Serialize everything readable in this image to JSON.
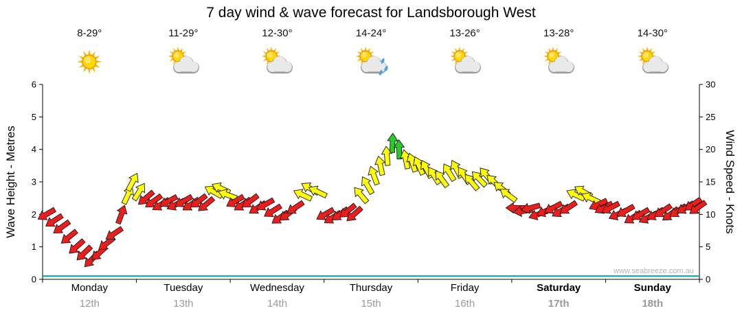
{
  "title": "7 day wind & wave forecast for Landsborough West",
  "watermark": "www.seabreeze.com.au",
  "days": [
    {
      "name": "Monday",
      "date": "12th",
      "temp": "8-29°",
      "icon": "sunny"
    },
    {
      "name": "Tuesday",
      "date": "13th",
      "temp": "11-29°",
      "icon": "partly-cloudy"
    },
    {
      "name": "Wednesday",
      "date": "14th",
      "temp": "12-30°",
      "icon": "partly-cloudy"
    },
    {
      "name": "Thursday",
      "date": "15th",
      "temp": "14-24°",
      "icon": "partly-cloudy-showers"
    },
    {
      "name": "Friday",
      "date": "16th",
      "temp": "13-26°",
      "icon": "partly-cloudy"
    },
    {
      "name": "Saturday",
      "date": "17th",
      "temp": "13-28°",
      "icon": "partly-cloudy"
    },
    {
      "name": "Sunday",
      "date": "18th",
      "temp": "14-30°",
      "icon": "partly-cloudy"
    }
  ],
  "chart_data": {
    "type": "wind-arrow-series",
    "title": "7 day wind & wave forecast for Landsborough West",
    "ylabel_left": "Wave Height - Metres",
    "ylabel_right": "Wind Speed - Knots",
    "ylim_left_metres": [
      0,
      6
    ],
    "ylim_right_knots": [
      0,
      30
    ],
    "left_ticks": [
      0,
      1,
      2,
      3,
      4,
      5,
      6
    ],
    "right_ticks": [
      0,
      5,
      10,
      15,
      20,
      25,
      30
    ],
    "x_range_days": [
      0,
      7
    ],
    "grid": "off",
    "colors": {
      "r": "#ef1c1c",
      "y": "#ffff00",
      "g": "#28cc28"
    },
    "wave_line": {
      "height_m": 0.1,
      "color": "#009e9e"
    },
    "point_fields": [
      "t_days",
      "wind_knots",
      "arrow_rotation_deg",
      "color_key"
    ],
    "points": [
      [
        0.04,
        10,
        150,
        "r"
      ],
      [
        0.12,
        9,
        147,
        "r"
      ],
      [
        0.2,
        8,
        144,
        "r"
      ],
      [
        0.28,
        6.5,
        141,
        "r"
      ],
      [
        0.36,
        5,
        138,
        "r"
      ],
      [
        0.44,
        4,
        136,
        "r"
      ],
      [
        0.52,
        3,
        134,
        "r"
      ],
      [
        0.6,
        4,
        138,
        "r"
      ],
      [
        0.68,
        5.5,
        142,
        "r"
      ],
      [
        0.76,
        7,
        146,
        "r"
      ],
      [
        0.84,
        10,
        290,
        "r"
      ],
      [
        0.91,
        13,
        295,
        "y"
      ],
      [
        0.96,
        15,
        298,
        "y"
      ],
      [
        1.03,
        13.5,
        302,
        "y"
      ],
      [
        1.1,
        12.5,
        140,
        "r"
      ],
      [
        1.18,
        12,
        144,
        "r"
      ],
      [
        1.26,
        11.5,
        148,
        "r"
      ],
      [
        1.34,
        12,
        151,
        "r"
      ],
      [
        1.42,
        11.5,
        154,
        "r"
      ],
      [
        1.5,
        12,
        150,
        "r"
      ],
      [
        1.58,
        11.5,
        146,
        "r"
      ],
      [
        1.66,
        12,
        143,
        "r"
      ],
      [
        1.74,
        11.5,
        140,
        "r"
      ],
      [
        1.82,
        13.5,
        210,
        "y"
      ],
      [
        1.9,
        14,
        205,
        "y"
      ],
      [
        1.97,
        13,
        200,
        "y"
      ],
      [
        2.05,
        12,
        150,
        "r"
      ],
      [
        2.13,
        11.5,
        146,
        "r"
      ],
      [
        2.21,
        12,
        143,
        "r"
      ],
      [
        2.29,
        11,
        147,
        "r"
      ],
      [
        2.37,
        11.5,
        151,
        "r"
      ],
      [
        2.45,
        10.5,
        148,
        "r"
      ],
      [
        2.53,
        9.5,
        145,
        "r"
      ],
      [
        2.61,
        10,
        142,
        "r"
      ],
      [
        2.69,
        11,
        146,
        "r"
      ],
      [
        2.77,
        13,
        205,
        "y"
      ],
      [
        2.85,
        14,
        210,
        "y"
      ],
      [
        2.93,
        13.5,
        206,
        "y"
      ],
      [
        3.01,
        10,
        150,
        "r"
      ],
      [
        3.09,
        9.5,
        147,
        "r"
      ],
      [
        3.17,
        10,
        144,
        "r"
      ],
      [
        3.25,
        10.5,
        141,
        "r"
      ],
      [
        3.32,
        10,
        138,
        "r"
      ],
      [
        3.39,
        13,
        230,
        "y"
      ],
      [
        3.46,
        14.5,
        240,
        "y"
      ],
      [
        3.53,
        16,
        250,
        "y"
      ],
      [
        3.6,
        17.5,
        258,
        "y"
      ],
      [
        3.67,
        19,
        265,
        "y"
      ],
      [
        3.73,
        21,
        272,
        "g"
      ],
      [
        3.8,
        20,
        268,
        "g"
      ],
      [
        3.87,
        18.5,
        258,
        "y"
      ],
      [
        3.94,
        18,
        252,
        "y"
      ],
      [
        4.01,
        17.5,
        246,
        "y"
      ],
      [
        4.09,
        17,
        242,
        "y"
      ],
      [
        4.17,
        16,
        238,
        "y"
      ],
      [
        4.25,
        15.5,
        234,
        "y"
      ],
      [
        4.33,
        16.5,
        238,
        "y"
      ],
      [
        4.41,
        17,
        242,
        "y"
      ],
      [
        4.49,
        16,
        236,
        "y"
      ],
      [
        4.57,
        15,
        230,
        "y"
      ],
      [
        4.65,
        15.5,
        226,
        "y"
      ],
      [
        4.73,
        16,
        230,
        "y"
      ],
      [
        4.81,
        15,
        224,
        "y"
      ],
      [
        4.89,
        14,
        220,
        "y"
      ],
      [
        4.96,
        13,
        216,
        "y"
      ],
      [
        5.04,
        11,
        180,
        "r"
      ],
      [
        5.12,
        10.5,
        172,
        "r"
      ],
      [
        5.2,
        11,
        165,
        "r"
      ],
      [
        5.28,
        10,
        160,
        "r"
      ],
      [
        5.36,
        10.5,
        156,
        "r"
      ],
      [
        5.44,
        11,
        152,
        "r"
      ],
      [
        5.52,
        10.5,
        149,
        "r"
      ],
      [
        5.6,
        11,
        146,
        "r"
      ],
      [
        5.68,
        13,
        205,
        "y"
      ],
      [
        5.76,
        13.5,
        210,
        "y"
      ],
      [
        5.84,
        12.5,
        205,
        "y"
      ],
      [
        5.92,
        11.5,
        155,
        "r"
      ],
      [
        5.98,
        11,
        152,
        "r"
      ],
      [
        6.05,
        11,
        152,
        "r"
      ],
      [
        6.13,
        10,
        155,
        "r"
      ],
      [
        6.21,
        10.5,
        150,
        "r"
      ],
      [
        6.29,
        9.5,
        147,
        "r"
      ],
      [
        6.37,
        10,
        150,
        "r"
      ],
      [
        6.45,
        9.5,
        153,
        "r"
      ],
      [
        6.53,
        10,
        149,
        "r"
      ],
      [
        6.61,
        10.5,
        146,
        "r"
      ],
      [
        6.69,
        10,
        143,
        "r"
      ],
      [
        6.77,
        10.5,
        146,
        "r"
      ],
      [
        6.85,
        11,
        149,
        "r"
      ],
      [
        6.93,
        11.5,
        146,
        "r"
      ],
      [
        6.98,
        11,
        144,
        "r"
      ]
    ]
  }
}
